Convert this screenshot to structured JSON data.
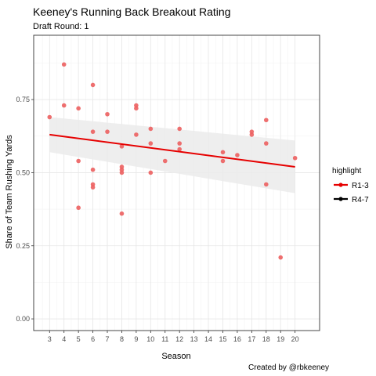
{
  "chart_data": {
    "type": "scatter",
    "title": "Keeney's Running Back Breakout Rating",
    "subtitle": "Draft Round: 1",
    "caption": "Created by @rbkeeney",
    "xlabel": "Season",
    "ylabel": "Share of Team Rushing Yards",
    "xlim": [
      1.9,
      21.7
    ],
    "ylim": [
      -0.04,
      0.97
    ],
    "x_ticks": [
      3,
      4,
      5,
      6,
      7,
      8,
      9,
      10,
      11,
      12,
      13,
      14,
      15,
      16,
      17,
      18,
      19,
      20
    ],
    "y_ticks": [
      0.0,
      0.25,
      0.5,
      0.75
    ],
    "y_tick_labels": [
      "0.00",
      "0.25",
      "0.50",
      "0.75"
    ],
    "grid": true,
    "legend": {
      "title": "highlight",
      "position": "right",
      "entries": [
        {
          "label": "R1-3",
          "color": "#e60000"
        },
        {
          "label": "R4-7",
          "color": "#000000"
        }
      ]
    },
    "colors": {
      "points": "#ec5f5f",
      "trend": "#e60000",
      "ribbon": "#ebebeb",
      "panel_border": "#333333",
      "grid_major": "#e6e6e6",
      "grid_minor": "#f3f3f3"
    },
    "series": [
      {
        "name": "R1-3",
        "points": [
          [
            3,
            0.69
          ],
          [
            4,
            0.87
          ],
          [
            4,
            0.73
          ],
          [
            5,
            0.72
          ],
          [
            5,
            0.54
          ],
          [
            5,
            0.38
          ],
          [
            6,
            0.8
          ],
          [
            6,
            0.64
          ],
          [
            6,
            0.51
          ],
          [
            6,
            0.46
          ],
          [
            6,
            0.45
          ],
          [
            7,
            0.7
          ],
          [
            7,
            0.64
          ],
          [
            8,
            0.59
          ],
          [
            8,
            0.52
          ],
          [
            8,
            0.51
          ],
          [
            8,
            0.5
          ],
          [
            8,
            0.36
          ],
          [
            9,
            0.73
          ],
          [
            9,
            0.72
          ],
          [
            9,
            0.63
          ],
          [
            10,
            0.65
          ],
          [
            10,
            0.6
          ],
          [
            10,
            0.5
          ],
          [
            11,
            0.54
          ],
          [
            12,
            0.65
          ],
          [
            12,
            0.6
          ],
          [
            12,
            0.58
          ],
          [
            15,
            0.57
          ],
          [
            15,
            0.54
          ],
          [
            16,
            0.56
          ],
          [
            17,
            0.64
          ],
          [
            17,
            0.63
          ],
          [
            18,
            0.68
          ],
          [
            18,
            0.6
          ],
          [
            18,
            0.46
          ],
          [
            19,
            0.21
          ],
          [
            20,
            0.55
          ]
        ]
      }
    ],
    "trend": {
      "name": "R1-3",
      "method": "linear",
      "x": [
        3,
        20
      ],
      "y": [
        0.63,
        0.52
      ],
      "ci_lower": [
        0.57,
        0.43
      ],
      "ci_upper": [
        0.69,
        0.61
      ]
    }
  }
}
